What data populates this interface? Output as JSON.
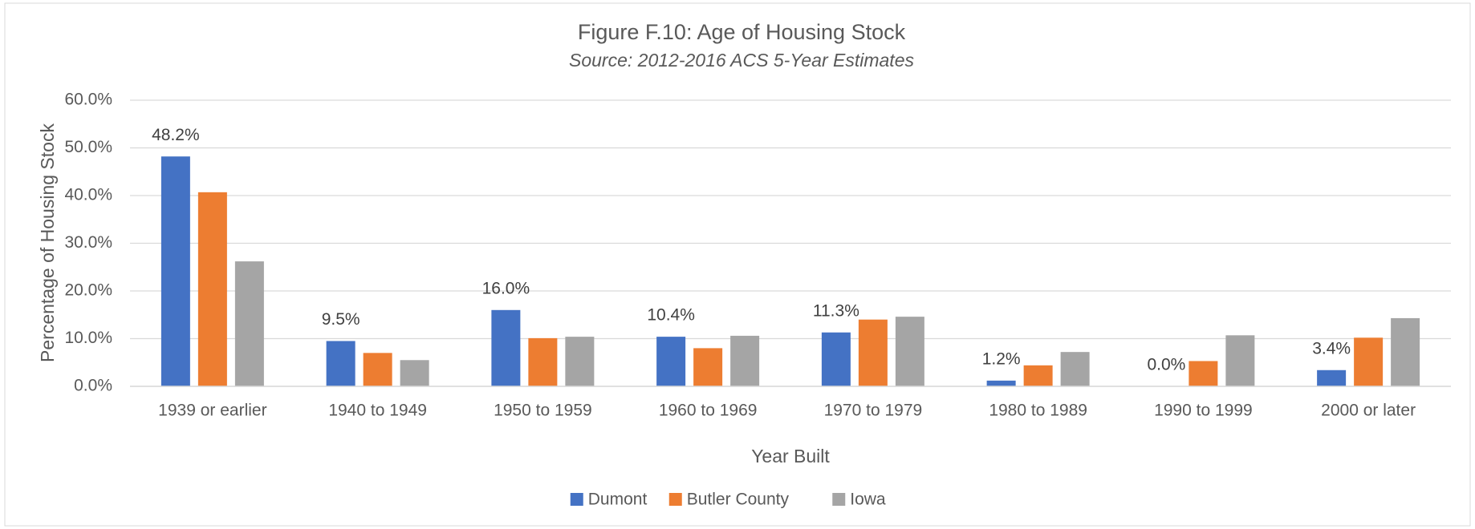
{
  "chart_data": {
    "type": "bar",
    "title": "Figure F.10: Age of Housing Stock",
    "subtitle": "Source: 2012-2016 ACS 5-Year Estimates",
    "x_label": "Year Built",
    "y_label": "Percentage of Housing Stock",
    "categories": [
      "1939 or earlier",
      "1940 to 1949",
      "1950 to 1959",
      "1960 to 1969",
      "1970 to 1979",
      "1980 to 1989",
      "1990 to 1999",
      "2000 or later"
    ],
    "series": [
      {
        "name": "Dumont",
        "color": "#4472c4",
        "values": [
          48.2,
          9.5,
          16.0,
          10.4,
          11.3,
          1.2,
          0.0,
          3.4
        ],
        "value_labels": [
          "48.2%",
          "9.5%",
          "16.0%",
          "10.4%",
          "11.3%",
          "1.2%",
          "0.0%",
          "3.4%"
        ]
      },
      {
        "name": "Butler County",
        "color": "#ed7d31",
        "values": [
          40.7,
          7.0,
          10.1,
          8.0,
          14.0,
          4.4,
          5.3,
          10.2
        ]
      },
      {
        "name": "Iowa",
        "color": "#a5a5a5",
        "values": [
          26.2,
          5.5,
          10.4,
          10.6,
          14.6,
          7.2,
          10.7,
          14.3
        ]
      }
    ],
    "ylim": [
      0,
      60
    ],
    "yticks": [
      {
        "value": 0,
        "label": "0.0%"
      },
      {
        "value": 10,
        "label": "10.0%"
      },
      {
        "value": 20,
        "label": "20.0%"
      },
      {
        "value": 30,
        "label": "30.0%"
      },
      {
        "value": 40,
        "label": "40.0%"
      },
      {
        "value": 50,
        "label": "50.0%"
      },
      {
        "value": 60,
        "label": "60.0%"
      }
    ],
    "grid": true,
    "legend": "bottom"
  }
}
